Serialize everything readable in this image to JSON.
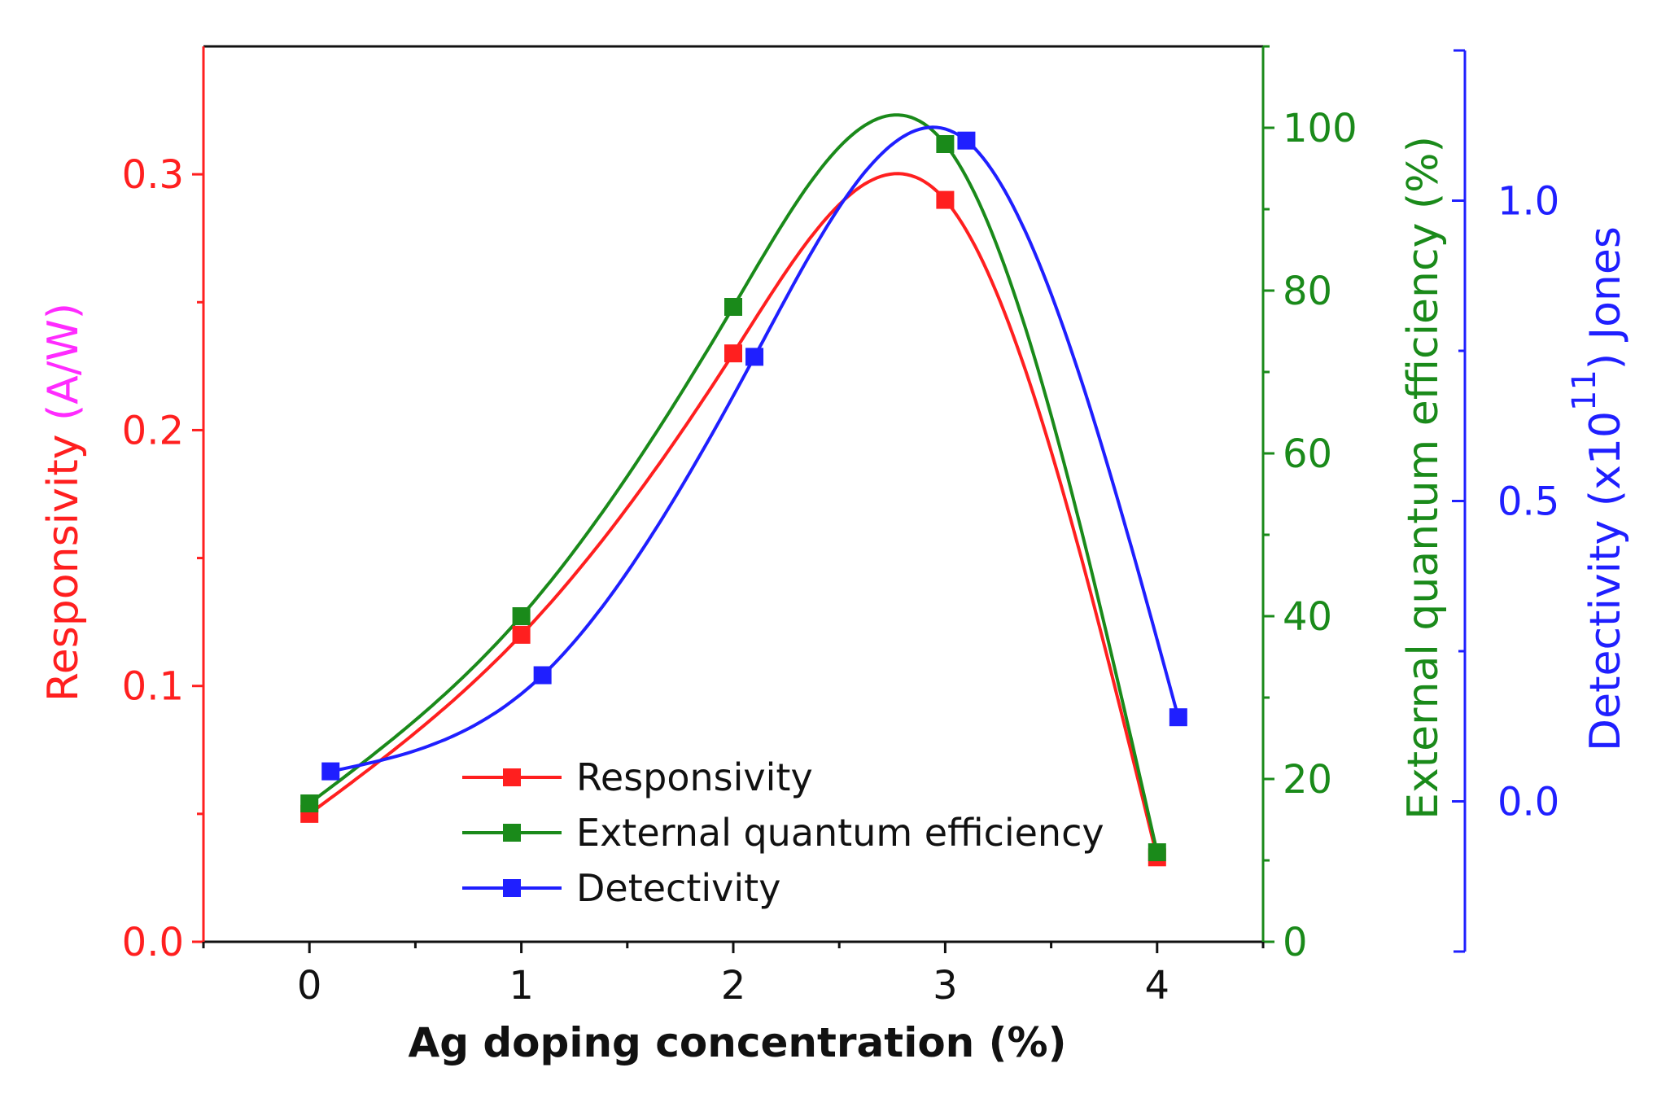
{
  "chart_data": {
    "type": "line",
    "x": [
      0,
      1,
      2,
      3,
      4
    ],
    "x_offsets_note": "",
    "xlabel": "Ag doping concentration (%)",
    "xlim": [
      -0.5,
      4.5
    ],
    "xticks": [
      "0",
      "1",
      "2",
      "3",
      "4"
    ],
    "series": [
      {
        "name": "Responsivity",
        "axis": "left",
        "color": "#ff1f1f",
        "x": [
          0,
          1,
          2,
          3,
          4
        ],
        "values": [
          0.05,
          0.12,
          0.23,
          0.29,
          0.033
        ]
      },
      {
        "name": "External quantum efficiency",
        "axis": "right1",
        "color": "#1a8a1a",
        "x": [
          0,
          1,
          2,
          3,
          4
        ],
        "values": [
          17,
          40,
          78,
          98,
          11
        ]
      },
      {
        "name": "Detectivity",
        "axis": "right2",
        "color": "#1f1fff",
        "x": [
          0.1,
          1.1,
          2.1,
          3.1,
          4.1
        ],
        "values": [
          0.05,
          0.21,
          0.74,
          1.1,
          0.14
        ]
      }
    ],
    "left_axis": {
      "title_main": "Responsivity ",
      "title_unit": "(A/W)",
      "title_color": "#ff1f1f",
      "unit_color": "#ff2bff",
      "ylim": [
        0,
        0.35
      ],
      "ticks": [
        0.0,
        0.1,
        0.2,
        0.3
      ],
      "tick_labels": [
        "0.0",
        "0.1",
        "0.2",
        "0.3"
      ]
    },
    "right1_axis": {
      "title": "External quantum efficiency (%)",
      "color": "#1a8a1a",
      "ylim": [
        0,
        110
      ],
      "ticks": [
        0,
        20,
        40,
        60,
        80,
        100
      ],
      "tick_labels": [
        "0",
        "20",
        "40",
        "60",
        "80",
        "100"
      ]
    },
    "right2_axis": {
      "title_pre": "Detectivity (x10",
      "title_exp": "11",
      "title_post": ") Jones",
      "color": "#1f1fff",
      "ylim": [
        -0.25,
        1.25
      ],
      "ticks": [
        0.0,
        0.5,
        1.0
      ],
      "tick_labels": [
        "0.0",
        "0.5",
        "1.0"
      ]
    },
    "legend": {
      "placement": "bottom-left",
      "entries": [
        "Responsivity",
        "External quantum efficiency",
        "Detectivity"
      ]
    }
  }
}
